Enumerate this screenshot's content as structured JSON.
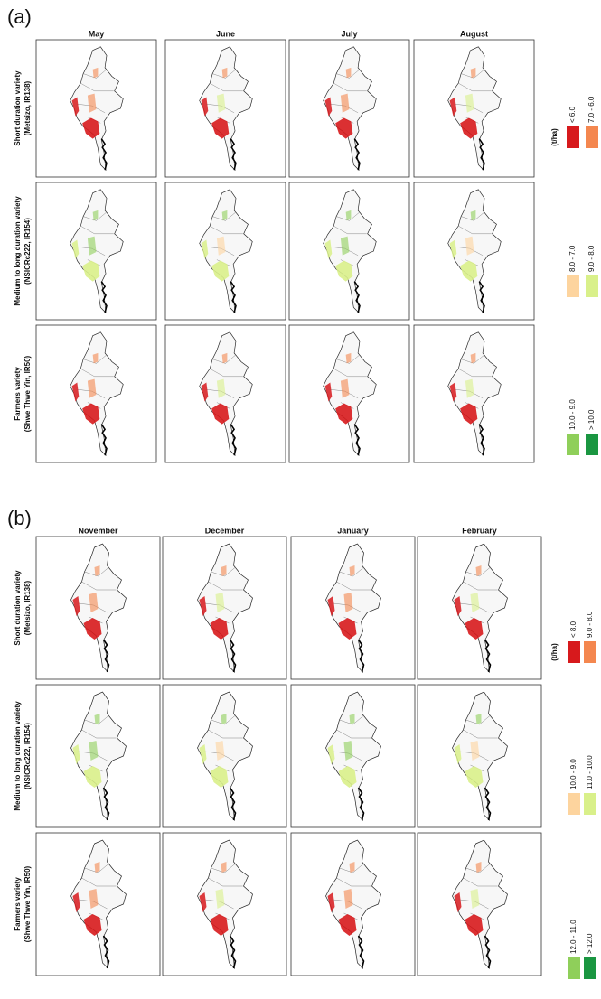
{
  "panels": [
    {
      "label": "(a)",
      "columns": [
        "May",
        "June",
        "July",
        "August"
      ],
      "rows": [
        {
          "title": "Short duration variety",
          "subtitle": "(Metsizo, IR138)"
        },
        {
          "title": "Medium to long duration variety",
          "subtitle": "(NSICRc222, IR154)"
        },
        {
          "title": "Farmers variety",
          "subtitle": "(Shwe Thwe Yin, IR50)"
        }
      ],
      "legend": {
        "unit": "(t/ha)",
        "items": [
          {
            "label": "< 6.0",
            "color": "#d7191c"
          },
          {
            "label": "7.0 - 6.0",
            "color": "#f4874f"
          },
          {
            "label": "8.0 - 7.0",
            "color": "#fdd49e"
          },
          {
            "label": "9.0 - 8.0",
            "color": "#d9f08a"
          },
          {
            "label": "10.0 - 9.0",
            "color": "#8fcf5a"
          },
          {
            "label": "> 10.0",
            "color": "#1a9641"
          }
        ]
      }
    },
    {
      "label": "(b)",
      "columns": [
        "November",
        "December",
        "January",
        "February"
      ],
      "rows": [
        {
          "title": "Short duration variety",
          "subtitle": "(Metsizo, IR138)"
        },
        {
          "title": "Medium to long duration variety",
          "subtitle": "(NSICRc222, IR154)"
        },
        {
          "title": "Farmers variety",
          "subtitle": "(Shwe Thwe Yin, IR50)"
        }
      ],
      "legend": {
        "unit": "(t/ha)",
        "items": [
          {
            "label": "< 8.0",
            "color": "#d7191c"
          },
          {
            "label": "9.0 - 8.0",
            "color": "#f4874f"
          },
          {
            "label": "10.0 - 9.0",
            "color": "#fdd49e"
          },
          {
            "label": "11.0 - 10.0",
            "color": "#d9f08a"
          },
          {
            "label": "12.0 - 11.0",
            "color": "#8fcf5a"
          },
          {
            "label": "> 12.0",
            "color": "#1a9641"
          }
        ]
      }
    }
  ]
}
